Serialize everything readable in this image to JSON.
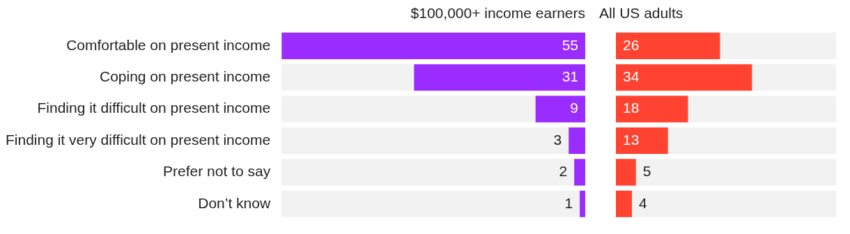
{
  "chart_data": [
    {
      "type": "bar",
      "orientation": "horizontal",
      "title": "$100,000+ income earners",
      "categories": [
        "Comfortable on present income",
        "Coping on present income",
        "Finding it difficult on present income",
        "Finding it very difficult on present income",
        "Prefer not to say",
        "Don’t know"
      ],
      "values": [
        55,
        31,
        9,
        3,
        2,
        1
      ],
      "color": "#9b2cff",
      "xlim": [
        55,
        0
      ],
      "data_labels": true
    },
    {
      "type": "bar",
      "orientation": "horizontal",
      "title": "All US adults",
      "categories": [
        null,
        null,
        null,
        null,
        null,
        null
      ],
      "values": [
        26,
        34,
        18,
        13,
        5,
        4
      ],
      "color": "#ff4330",
      "xlim": [
        0,
        55
      ],
      "data_labels": true
    }
  ]
}
